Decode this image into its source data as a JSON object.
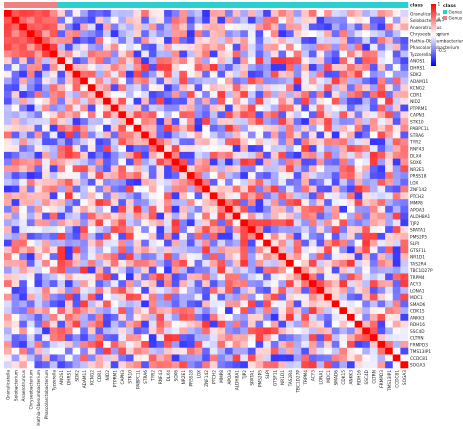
{
  "chart_data": {
    "type": "heatmap",
    "title": "",
    "xlabel": "",
    "ylabel": "",
    "annotation_bar": {
      "label": "class",
      "legend_title": "class",
      "categories": [
        {
          "name": "Genes",
          "color": "#2ccfcf"
        },
        {
          "name": "Genus",
          "color": "#f08080"
        }
      ]
    },
    "colorbar": {
      "ticks": [
        1,
        0.5,
        0,
        -0.5
      ],
      "range": [
        -1,
        1
      ],
      "colors": {
        "low": "#0000ff",
        "mid": "#ffffff",
        "high": "#ff0000"
      }
    },
    "row_labels": [
      "Granulicatella",
      "Solobacterium",
      "Anaerotruncus",
      "Chryseobacterium",
      "Hathia-Obesumbacterium",
      "Phascolarctobacterium",
      "Tyzzerella",
      "ANOS1",
      "DHRS1",
      "SDK2",
      "ADAM11",
      "KCNG2",
      "CDR1",
      "NID2",
      "PTPRM1",
      "CAPN3",
      "STK10",
      "PABPC1L",
      "STRA6",
      "TYR2",
      "RNF43",
      "DLX4",
      "SOX6",
      "NR2E1",
      "PRSS18",
      "LOX",
      "ZNF142",
      "PTCH2",
      "MMP8",
      "APOA3",
      "ALDH8A1",
      "TJP2",
      "SPATA1",
      "PMS2P5",
      "SLPI",
      "GTSF1L",
      "NR1D1",
      "TAS2R4",
      "TBC1D27P",
      "TRPM4",
      "ACY3",
      "LONA1",
      "MDC1",
      "SMAD6",
      "CDK15",
      "ANKK3",
      "RDH16",
      "SSC4D",
      "CLTRN",
      "FRMPD3",
      "TMS13IP1",
      "CCDC81",
      "SOGA3"
    ],
    "col_labels": [
      "Granulicatella",
      "Solobacterium",
      "Anaerotruncus",
      "Chryseobacterium",
      "Hathia-Obesumbacterium",
      "Phascolarctobacterium",
      "Tyzzerella",
      "ANOS1",
      "DHRS1",
      "SDK2",
      "ADAM11",
      "KCNG2",
      "CDR1",
      "NID2",
      "PTPRM1",
      "CAPN3",
      "STK10",
      "PABPC1L",
      "STRA6",
      "TYR2",
      "RNF43",
      "DLX4",
      "SOX6",
      "NR2E1",
      "PRSS18",
      "LOX",
      "ZNF142",
      "PTCH2",
      "MMP8",
      "APOA3",
      "ALDH8A1",
      "TJP2",
      "SPATA1",
      "PMS2P5",
      "SLPI",
      "GTSF1L",
      "NR1D1",
      "TAS2R4",
      "TBC1D27P",
      "TRPM4",
      "ACY3",
      "LONA1",
      "MDC1",
      "SMAD6",
      "CDK15",
      "ANKK3",
      "RDH16",
      "SSC4D",
      "CLTRN",
      "FRMPD3",
      "TMS13IP1",
      "CCDC81",
      "SOGA3"
    ],
    "col_classes": [
      "Genus",
      "Genus",
      "Genus",
      "Genus",
      "Genus",
      "Genus",
      "Genus",
      "Genes",
      "Genes",
      "Genes",
      "Genes",
      "Genes",
      "Genes",
      "Genes",
      "Genes",
      "Genes",
      "Genes",
      "Genes",
      "Genes",
      "Genes",
      "Genes",
      "Genes",
      "Genes",
      "Genes",
      "Genes",
      "Genes",
      "Genes",
      "Genes",
      "Genes",
      "Genes",
      "Genes",
      "Genes",
      "Genes",
      "Genes",
      "Genes",
      "Genes",
      "Genes",
      "Genes",
      "Genes",
      "Genes",
      "Genes",
      "Genes",
      "Genes",
      "Genes",
      "Genes",
      "Genes",
      "Genes",
      "Genes",
      "Genes",
      "Genes",
      "Genes",
      "Genes",
      "Genes"
    ],
    "matrix_note": "symmetric correlation matrix, diagonal = 1; cell values approximated from colour"
  }
}
